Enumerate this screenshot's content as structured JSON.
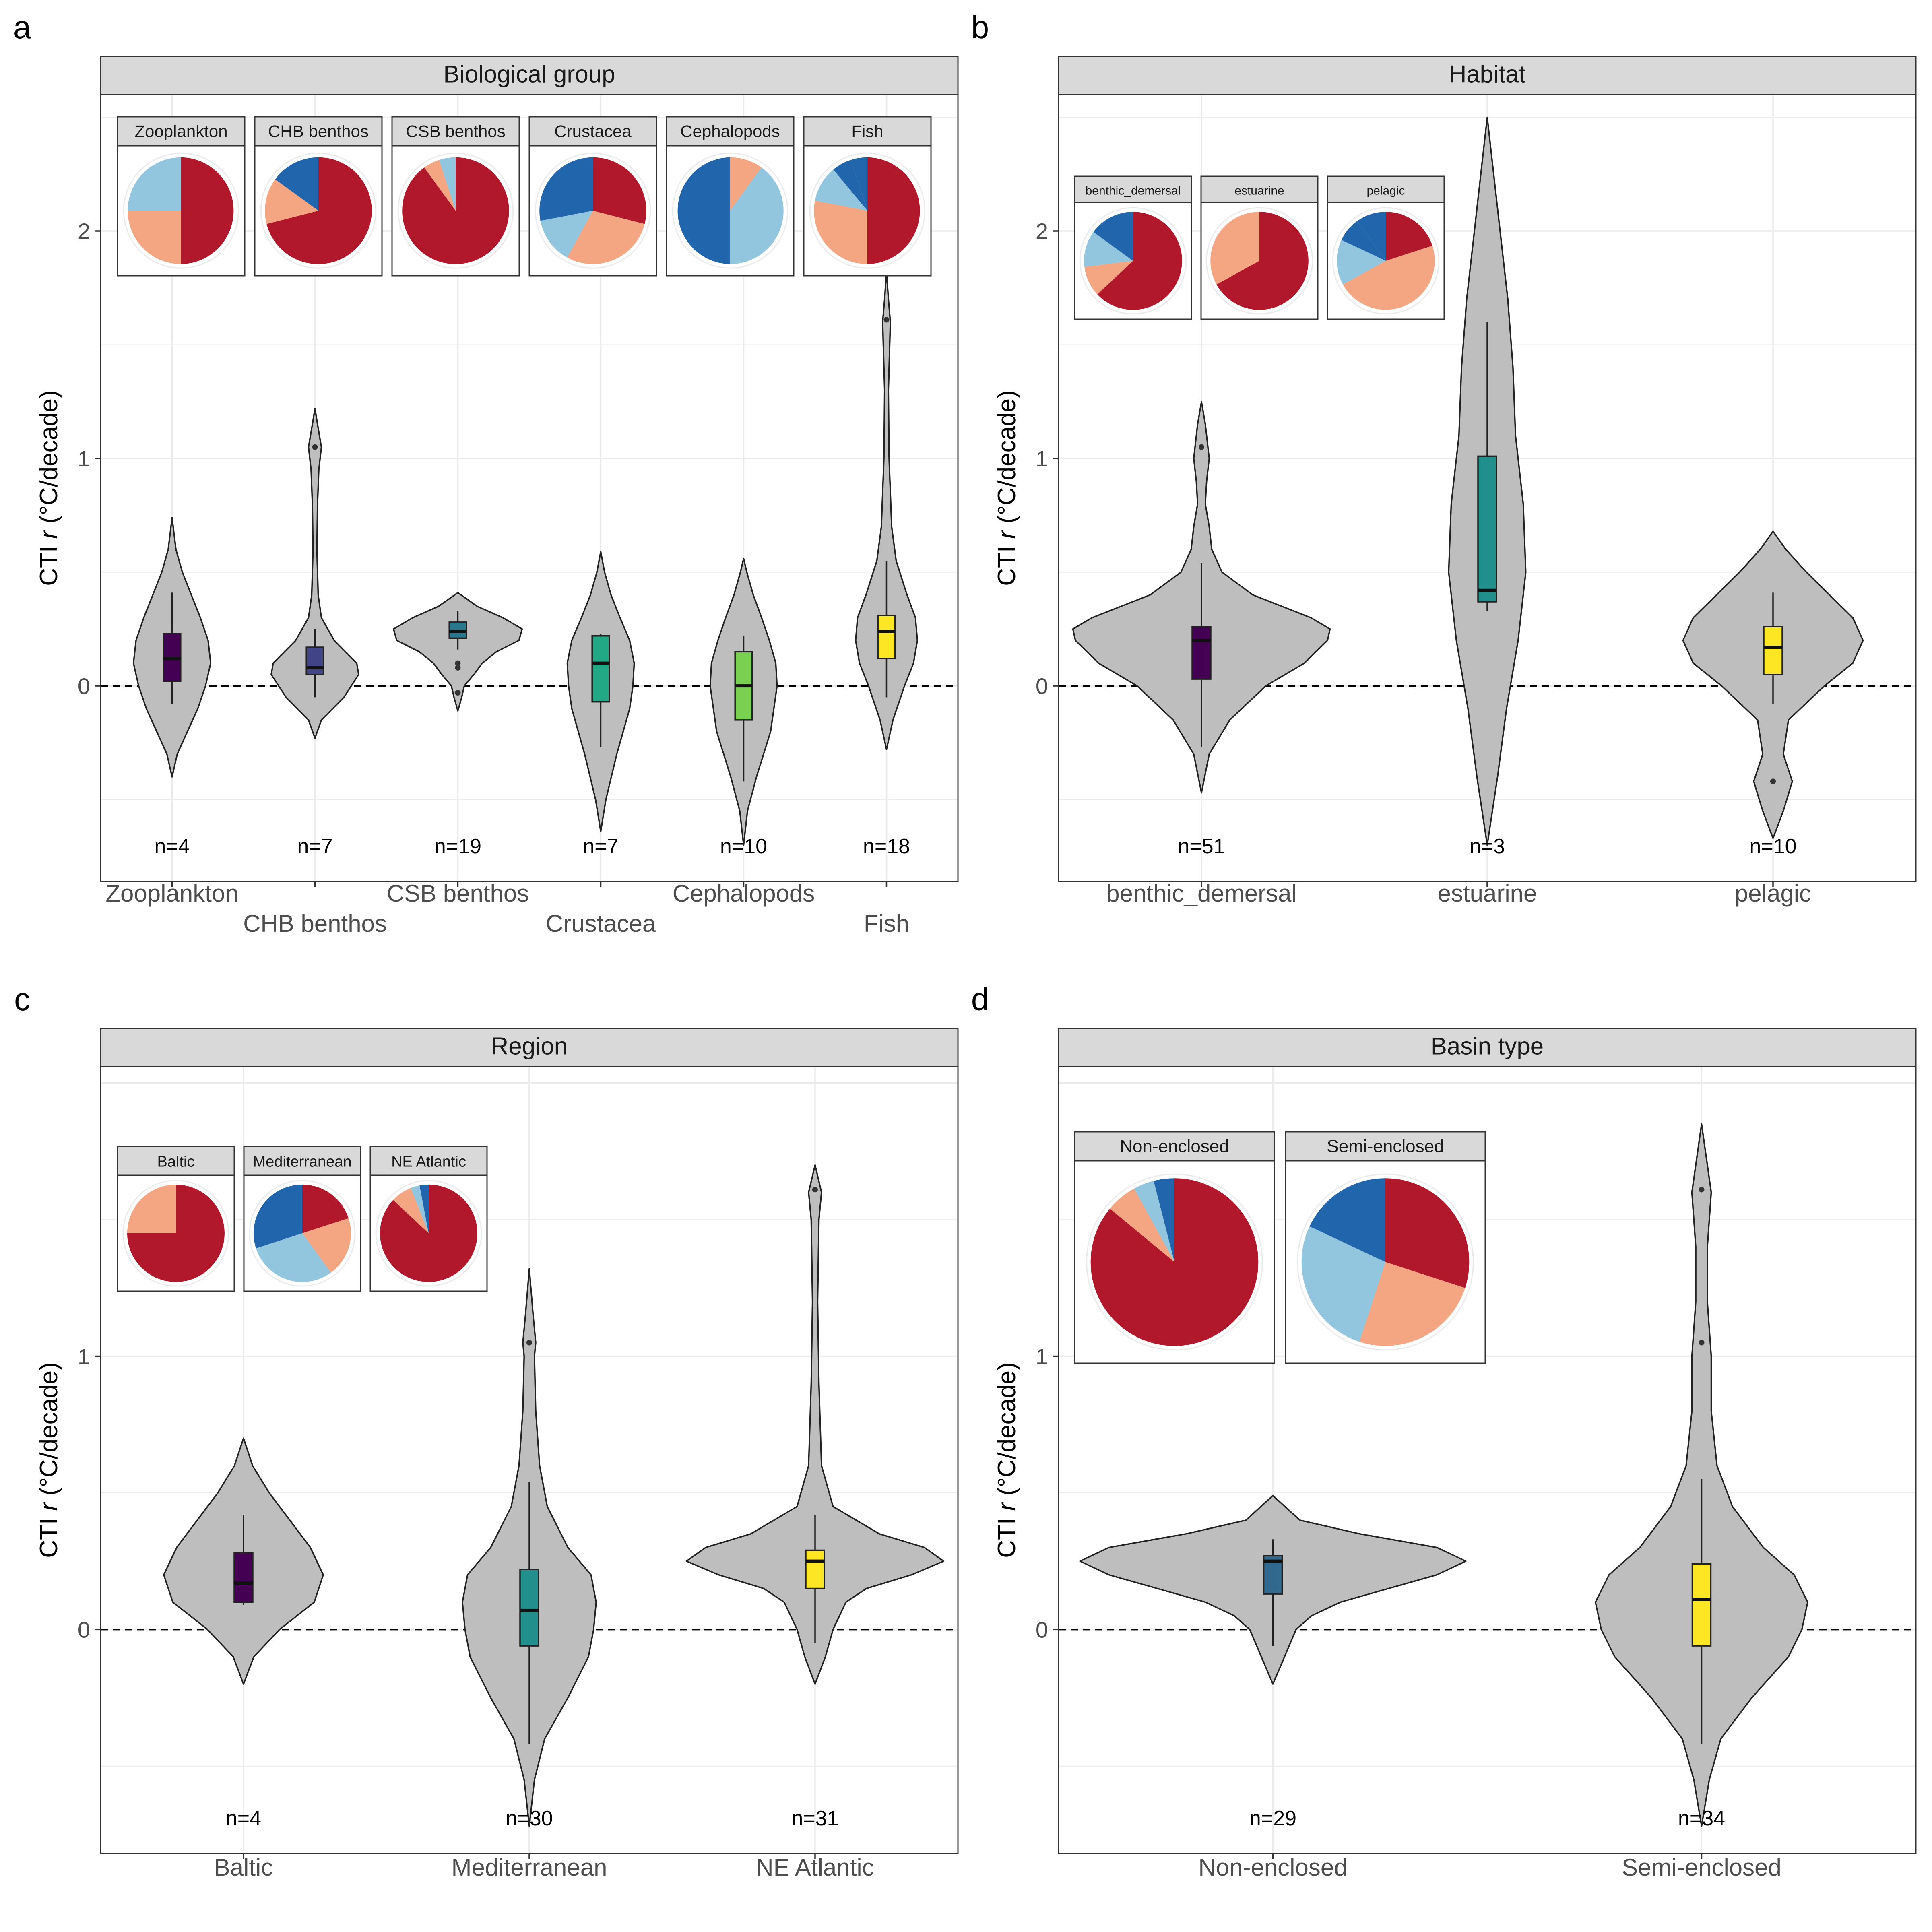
{
  "colors": {
    "violin_fill": "#bebebe",
    "strip_fill": "#d9d9d9",
    "grid": "#ebebeb",
    "pie_dark_red": "#b2182b",
    "pie_light_red": "#f4a582",
    "pie_light_blue": "#92c5de",
    "pie_dark_blue": "#2166ac",
    "box_colors_6": [
      "#440154",
      "#414487",
      "#2a788e",
      "#22a884",
      "#7ad151",
      "#fde725"
    ],
    "box_colors_3": [
      "#440154",
      "#21908c",
      "#fde725"
    ],
    "box_colors_2": [
      "#31688e",
      "#fde725"
    ]
  },
  "chart_data": [
    {
      "panel_label": "a",
      "type": "violin",
      "title": "Biological group",
      "ylabel": "CTI r (°C/decade)",
      "ylim": [
        -0.86,
        2.6
      ],
      "yticks": [
        0,
        1,
        2
      ],
      "zero_line": true,
      "grid": true,
      "categories": [
        "Zooplankton",
        "CHB benthos",
        "CSB benthos",
        "Crustacea",
        "Cephalopods",
        "Fish"
      ],
      "n_labels": [
        "n=4",
        "n=7",
        "n=19",
        "n=7",
        "n=10",
        "n=18"
      ],
      "violins": [
        {
          "y": [
            -0.4,
            -0.3,
            -0.2,
            -0.1,
            0,
            0.1,
            0.2,
            0.3,
            0.4,
            0.5,
            0.6,
            0.74
          ],
          "w": [
            0,
            0.08,
            0.24,
            0.4,
            0.52,
            0.6,
            0.56,
            0.44,
            0.3,
            0.16,
            0.06,
            0
          ]
        },
        {
          "y": [
            -0.23,
            -0.15,
            -0.05,
            0.05,
            0.1,
            0.2,
            0.3,
            0.4,
            0.6,
            0.8,
            0.95,
            1.05,
            1.15,
            1.22
          ],
          "w": [
            0,
            0.1,
            0.45,
            0.68,
            0.65,
            0.3,
            0.1,
            0.05,
            0.03,
            0.04,
            0.06,
            0.1,
            0.04,
            0
          ]
        },
        {
          "y": [
            -0.11,
            -0.05,
            0,
            0.05,
            0.1,
            0.15,
            0.2,
            0.25,
            0.3,
            0.35,
            0.41
          ],
          "w": [
            0,
            0.06,
            0.1,
            0.25,
            0.38,
            0.6,
            0.95,
            1.0,
            0.7,
            0.3,
            0
          ]
        },
        {
          "y": [
            -0.64,
            -0.5,
            -0.3,
            -0.1,
            0,
            0.1,
            0.2,
            0.3,
            0.4,
            0.5,
            0.59
          ],
          "w": [
            0,
            0.08,
            0.25,
            0.45,
            0.5,
            0.52,
            0.45,
            0.3,
            0.16,
            0.06,
            0
          ]
        },
        {
          "y": [
            -0.7,
            -0.55,
            -0.4,
            -0.2,
            0,
            0.1,
            0.2,
            0.3,
            0.4,
            0.5,
            0.56
          ],
          "w": [
            0,
            0.06,
            0.2,
            0.42,
            0.52,
            0.5,
            0.4,
            0.28,
            0.15,
            0.05,
            0
          ]
        },
        {
          "y": [
            -0.28,
            -0.15,
            0,
            0.1,
            0.2,
            0.3,
            0.4,
            0.55,
            0.7,
            1.0,
            1.3,
            1.5,
            1.6,
            1.7,
            1.82
          ],
          "w": [
            0,
            0.1,
            0.28,
            0.42,
            0.48,
            0.45,
            0.32,
            0.15,
            0.08,
            0.04,
            0.03,
            0.05,
            0.06,
            0.03,
            0
          ]
        }
      ],
      "boxes": [
        {
          "whislo": -0.08,
          "q1": 0.02,
          "med": 0.12,
          "q3": 0.23,
          "whishi": 0.41,
          "outliers": []
        },
        {
          "whislo": -0.05,
          "q1": 0.05,
          "med": 0.08,
          "q3": 0.17,
          "whishi": 0.25,
          "outliers": [
            1.05
          ]
        },
        {
          "whislo": 0.16,
          "q1": 0.21,
          "med": 0.24,
          "q3": 0.28,
          "whishi": 0.33,
          "outliers": [
            0.1,
            0.08,
            -0.03
          ]
        },
        {
          "whislo": -0.27,
          "q1": -0.07,
          "med": 0.1,
          "q3": 0.22,
          "whishi": 0.23,
          "outliers": []
        },
        {
          "whislo": -0.42,
          "q1": -0.15,
          "med": 0,
          "q3": 0.15,
          "whishi": 0.22,
          "outliers": []
        },
        {
          "whislo": -0.05,
          "q1": 0.12,
          "med": 0.24,
          "q3": 0.31,
          "whishi": 0.55,
          "outliers": [
            1.61
          ]
        }
      ],
      "pies": [
        {
          "label": "Zooplankton",
          "slices": [
            0.5,
            0.25,
            0.25,
            0
          ]
        },
        {
          "label": "CHB benthos",
          "slices": [
            0.71,
            0.14,
            0,
            0.15
          ]
        },
        {
          "label": "CSB benthos",
          "slices": [
            0.9,
            0.05,
            0.05,
            0
          ]
        },
        {
          "label": "Crustacea",
          "slices": [
            0.29,
            0.29,
            0.14,
            0.28
          ]
        },
        {
          "label": "Cephalopods",
          "slices": [
            0,
            0.1,
            0.4,
            0.5
          ]
        },
        {
          "label": "Fish",
          "slices": [
            0.5,
            0.28,
            0.11,
            0.06,
            0.05
          ]
        }
      ]
    },
    {
      "panel_label": "b",
      "type": "violin",
      "title": "Habitat",
      "ylabel": "CTI r (°C/decade)",
      "ylim": [
        -0.86,
        2.6
      ],
      "yticks": [
        0,
        1,
        2
      ],
      "zero_line": true,
      "grid": true,
      "categories": [
        "benthic_demersal",
        "estuarine",
        "pelagic"
      ],
      "n_labels": [
        "n=51",
        "n=3",
        "n=10"
      ],
      "violins": [
        {
          "y": [
            -0.47,
            -0.3,
            -0.15,
            0,
            0.1,
            0.2,
            0.25,
            0.3,
            0.4,
            0.5,
            0.6,
            0.7,
            0.8,
            0.9,
            1.0,
            1.05,
            1.15,
            1.25
          ],
          "w": [
            0,
            0.06,
            0.22,
            0.5,
            0.8,
            0.98,
            1.0,
            0.85,
            0.4,
            0.16,
            0.08,
            0.06,
            0.03,
            0.04,
            0.06,
            0.05,
            0.03,
            0
          ]
        },
        {
          "y": [
            -0.7,
            -0.4,
            -0.1,
            0.2,
            0.5,
            0.8,
            1.1,
            1.4,
            1.7,
            2.0,
            2.3,
            2.5
          ],
          "w": [
            0,
            0.08,
            0.15,
            0.24,
            0.3,
            0.28,
            0.22,
            0.2,
            0.16,
            0.1,
            0.04,
            0
          ]
        },
        {
          "y": [
            -0.67,
            -0.55,
            -0.42,
            -0.3,
            -0.15,
            0,
            0.1,
            0.2,
            0.3,
            0.4,
            0.5,
            0.6,
            0.68
          ],
          "w": [
            0,
            0.08,
            0.15,
            0.08,
            0.12,
            0.4,
            0.62,
            0.7,
            0.62,
            0.44,
            0.26,
            0.1,
            0
          ]
        }
      ],
      "boxes": [
        {
          "whislo": -0.27,
          "q1": 0.03,
          "med": 0.2,
          "q3": 0.26,
          "whishi": 0.54,
          "outliers": [
            1.05
          ]
        },
        {
          "whislo": 0.33,
          "q1": 0.37,
          "med": 0.42,
          "q3": 1.01,
          "whishi": 1.6,
          "outliers": []
        },
        {
          "whislo": -0.08,
          "q1": 0.05,
          "med": 0.17,
          "q3": 0.26,
          "whishi": 0.41,
          "outliers": [
            -0.42
          ]
        }
      ],
      "pies": [
        {
          "label": "benthic_demersal",
          "slices": [
            0.63,
            0.1,
            0.12,
            0.15
          ]
        },
        {
          "label": "estuarine",
          "slices": [
            0.67,
            0.33,
            0,
            0
          ]
        },
        {
          "label": "pelagic",
          "slices": [
            0.2,
            0.47,
            0.15,
            0.08,
            0.1
          ]
        }
      ]
    },
    {
      "panel_label": "c",
      "type": "violin",
      "title": "Region",
      "ylabel": "CTI r (°C/decade)",
      "ylim": [
        -0.82,
        2.06
      ],
      "yticks": [
        0,
        1
      ],
      "zero_line": true,
      "grid": true,
      "categories": [
        "Baltic",
        "Mediterranean",
        "NE Atlantic"
      ],
      "n_labels": [
        "n=4",
        "n=30",
        "n=31"
      ],
      "violins": [
        {
          "y": [
            -0.2,
            -0.1,
            0,
            0.1,
            0.2,
            0.3,
            0.4,
            0.5,
            0.6,
            0.7
          ],
          "w": [
            0,
            0.08,
            0.28,
            0.55,
            0.62,
            0.52,
            0.36,
            0.2,
            0.07,
            0
          ]
        },
        {
          "y": [
            -0.72,
            -0.55,
            -0.4,
            -0.25,
            -0.1,
            0,
            0.1,
            0.2,
            0.3,
            0.45,
            0.6,
            0.8,
            1.0,
            1.05,
            1.15,
            1.32
          ],
          "w": [
            0,
            0.04,
            0.12,
            0.3,
            0.46,
            0.5,
            0.52,
            0.48,
            0.3,
            0.14,
            0.08,
            0.05,
            0.04,
            0.05,
            0.03,
            0
          ]
        },
        {
          "y": [
            -0.2,
            -0.1,
            0,
            0.1,
            0.15,
            0.2,
            0.25,
            0.3,
            0.35,
            0.45,
            0.6,
            0.9,
            1.2,
            1.5,
            1.6,
            1.7
          ],
          "w": [
            0,
            0.08,
            0.14,
            0.24,
            0.4,
            0.75,
            1.0,
            0.85,
            0.5,
            0.14,
            0.05,
            0.03,
            0.02,
            0.03,
            0.05,
            0
          ]
        }
      ],
      "boxes": [
        {
          "whislo": 0.09,
          "q1": 0.1,
          "med": 0.17,
          "q3": 0.28,
          "whishi": 0.42,
          "outliers": []
        },
        {
          "whislo": -0.42,
          "q1": -0.06,
          "med": 0.07,
          "q3": 0.22,
          "whishi": 0.54,
          "outliers": [
            1.05
          ]
        },
        {
          "whislo": -0.05,
          "q1": 0.15,
          "med": 0.25,
          "q3": 0.29,
          "whishi": 0.42,
          "outliers": [
            1.61
          ]
        }
      ],
      "pies": [
        {
          "label": "Baltic",
          "slices": [
            0.75,
            0.25,
            0,
            0
          ]
        },
        {
          "label": "Mediterranean",
          "slices": [
            0.2,
            0.2,
            0.3,
            0.3
          ]
        },
        {
          "label": "NE Atlantic",
          "slices": [
            0.87,
            0.07,
            0.03,
            0.03
          ]
        }
      ]
    },
    {
      "panel_label": "d",
      "type": "violin",
      "title": "Basin type",
      "ylabel": "CTI r (°C/decade)",
      "ylim": [
        -0.82,
        2.06
      ],
      "yticks": [
        0,
        1
      ],
      "zero_line": true,
      "grid": true,
      "categories": [
        "Non-enclosed",
        "Semi-enclosed"
      ],
      "n_labels": [
        "n=29",
        "n=34"
      ],
      "violins": [
        {
          "y": [
            -0.2,
            -0.1,
            0,
            0.05,
            0.1,
            0.15,
            0.2,
            0.25,
            0.3,
            0.35,
            0.4,
            0.49
          ],
          "w": [
            0,
            0.06,
            0.12,
            0.2,
            0.35,
            0.6,
            0.85,
            1.0,
            0.85,
            0.45,
            0.14,
            0
          ]
        },
        {
          "y": [
            -0.72,
            -0.55,
            -0.4,
            -0.25,
            -0.1,
            0,
            0.1,
            0.2,
            0.3,
            0.45,
            0.6,
            0.8,
            1.0,
            1.2,
            1.4,
            1.6,
            1.7,
            1.85
          ],
          "w": [
            0,
            0.04,
            0.1,
            0.26,
            0.45,
            0.52,
            0.55,
            0.48,
            0.32,
            0.16,
            0.08,
            0.05,
            0.05,
            0.03,
            0.03,
            0.05,
            0.03,
            0
          ]
        }
      ],
      "boxes": [
        {
          "whislo": -0.06,
          "q1": 0.13,
          "med": 0.25,
          "q3": 0.27,
          "whishi": 0.33,
          "outliers": []
        },
        {
          "whislo": -0.42,
          "q1": -0.06,
          "med": 0.11,
          "q3": 0.24,
          "whishi": 0.55,
          "outliers": [
            1.05,
            1.61
          ]
        }
      ],
      "pies": [
        {
          "label": "Non-enclosed",
          "slices": [
            0.86,
            0.06,
            0.04,
            0.04
          ]
        },
        {
          "label": "Semi-enclosed",
          "slices": [
            0.3,
            0.25,
            0.27,
            0.18
          ]
        }
      ]
    }
  ]
}
